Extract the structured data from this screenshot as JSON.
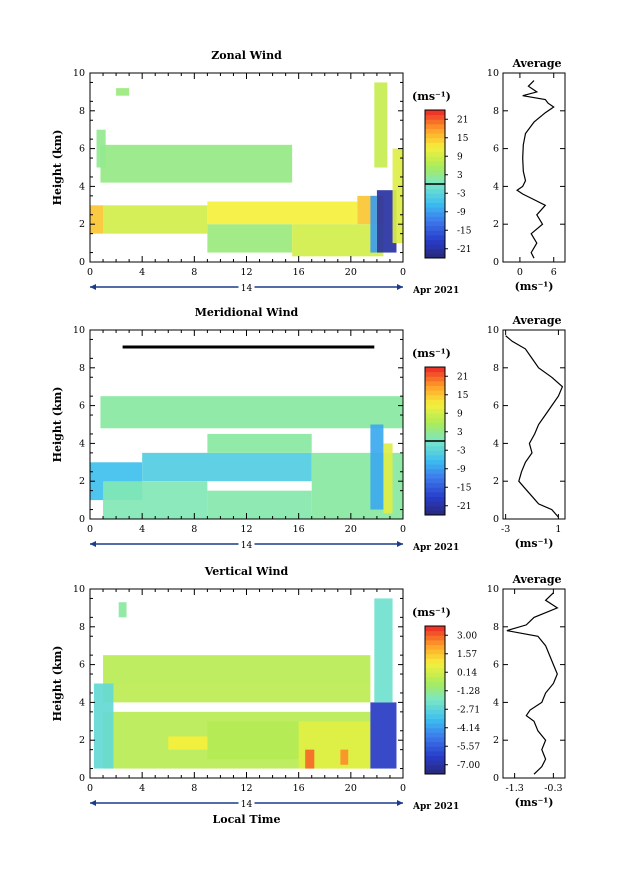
{
  "chart_data": [
    {
      "type": "heatmap",
      "title": "Zonal Wind",
      "ylabel": "Height (km)",
      "ylim": [
        0,
        10
      ],
      "yticks": [
        "0",
        "2",
        "4",
        "6",
        "8",
        "10"
      ],
      "xlim": [
        0,
        24
      ],
      "xticks": [
        "0",
        "4",
        "8",
        "12",
        "16",
        "20",
        "0"
      ],
      "day_label": "14",
      "date_label": "Apr 2021",
      "units": "(ms⁻¹)",
      "colorbar": {
        "min": -24,
        "max": 24,
        "ticks": [
          "21",
          "15",
          "9",
          "3",
          "-3",
          "-9",
          "-15",
          "-21"
        ]
      },
      "regions": [
        {
          "x0": 0.8,
          "x1": 15.5,
          "y0": 4.2,
          "y1": 6.2,
          "v": 3.5
        },
        {
          "x0": 9.0,
          "x1": 15.5,
          "y0": 0.5,
          "y1": 2.0,
          "v": 4
        },
        {
          "x0": 1.0,
          "x1": 9.0,
          "y0": 1.5,
          "y1": 3.0,
          "v": 9
        },
        {
          "x0": 0.0,
          "x1": 1.0,
          "y0": 1.5,
          "y1": 3.0,
          "v": 15
        },
        {
          "x0": 9.0,
          "x1": 20.5,
          "y0": 2.0,
          "y1": 3.2,
          "v": 12
        },
        {
          "x0": 15.5,
          "x1": 22.5,
          "y0": 0.3,
          "y1": 2.0,
          "v": 9
        },
        {
          "x0": 20.5,
          "x1": 22.5,
          "y0": 2.0,
          "y1": 3.5,
          "v": 15
        },
        {
          "x0": 22.0,
          "x1": 23.5,
          "y0": 0.5,
          "y1": 3.8,
          "v": -21
        },
        {
          "x0": 21.5,
          "x1": 22.0,
          "y0": 0.5,
          "y1": 3.5,
          "v": -9
        },
        {
          "x0": 21.8,
          "x1": 22.8,
          "y0": 5.0,
          "y1": 9.5,
          "v": 8
        },
        {
          "x0": 23.2,
          "x1": 24.0,
          "y0": 1.0,
          "y1": 6.0,
          "v": 10
        },
        {
          "x0": 0.5,
          "x1": 1.2,
          "y0": 5.0,
          "y1": 7.0,
          "v": 3
        },
        {
          "x0": 2.0,
          "x1": 3.0,
          "y0": 8.8,
          "y1": 9.2,
          "v": 4
        }
      ],
      "profile": {
        "title": "Average",
        "xlabel": "(ms⁻¹)",
        "xlim": [
          -3,
          8
        ],
        "xticks": [
          0,
          6
        ],
        "heights": [
          0.2,
          0.5,
          1.0,
          1.5,
          2.0,
          2.5,
          3.0,
          3.3,
          3.6,
          3.8,
          4.0,
          4.3,
          4.8,
          5.5,
          6.2,
          6.8,
          7.4,
          7.9,
          8.2,
          8.4,
          8.6,
          8.8,
          9.0,
          9.3,
          9.6
        ],
        "values": [
          2.5,
          2.0,
          3.0,
          2.0,
          4.0,
          3.0,
          4.5,
          2.5,
          0.5,
          -0.5,
          0.5,
          1.0,
          0.6,
          0.5,
          0.6,
          1.0,
          2.5,
          4.5,
          6.0,
          5.0,
          4.5,
          0.5,
          3.0,
          1.5,
          2.5
        ]
      }
    },
    {
      "type": "heatmap",
      "title": "Meridional Wind",
      "ylabel": "Height (km)",
      "ylim": [
        0,
        10
      ],
      "yticks": [
        "0",
        "2",
        "4",
        "6",
        "8",
        "10"
      ],
      "xlim": [
        0,
        24
      ],
      "xticks": [
        "0",
        "4",
        "8",
        "12",
        "16",
        "20",
        "0"
      ],
      "day_label": "14",
      "date_label": "Apr 2021",
      "units": "(ms⁻¹)",
      "colorbar": {
        "min": -24,
        "max": 24,
        "ticks": [
          "21",
          "15",
          "9",
          "3",
          "-3",
          "-9",
          "-15",
          "-21"
        ]
      },
      "regions": [
        {
          "x0": 0.8,
          "x1": 24.0,
          "y0": 4.8,
          "y1": 6.5,
          "v": 2
        },
        {
          "x0": 0.0,
          "x1": 4.0,
          "y0": 1.0,
          "y1": 3.0,
          "v": -6
        },
        {
          "x0": 4.0,
          "x1": 17.0,
          "y0": 2.0,
          "y1": 3.5,
          "v": -4
        },
        {
          "x0": 9.0,
          "x1": 17.0,
          "y0": 3.5,
          "y1": 4.5,
          "v": 2
        },
        {
          "x0": 1.0,
          "x1": 9.0,
          "y0": 0.0,
          "y1": 2.0,
          "v": 1
        },
        {
          "x0": 17.0,
          "x1": 24.0,
          "y0": 0.0,
          "y1": 3.5,
          "v": 2
        },
        {
          "x0": 9.0,
          "x1": 17.0,
          "y0": 0.0,
          "y1": 1.5,
          "v": 1.5
        },
        {
          "x0": 21.5,
          "x1": 22.5,
          "y0": 0.5,
          "y1": 5.0,
          "v": -8
        },
        {
          "x0": 22.5,
          "x1": 23.2,
          "y0": 0.3,
          "y1": 4.0,
          "v": 10
        }
      ],
      "line": {
        "x0": 2.5,
        "x1": 21.8,
        "y": 9.1
      },
      "profile": {
        "title": "Average",
        "xlabel": "(ms⁻¹)",
        "xlim": [
          -3.2,
          1.5
        ],
        "xticks": [
          -3,
          1
        ],
        "tick_labels": [
          "-3",
          "1"
        ],
        "heights": [
          0.1,
          0.5,
          0.8,
          1.2,
          1.6,
          2.0,
          2.5,
          3.0,
          3.5,
          4.0,
          4.5,
          5.0,
          5.5,
          6.0,
          6.5,
          7.0,
          7.5,
          8.0,
          8.5,
          9.0,
          9.4,
          9.7
        ],
        "values": [
          1.0,
          0.5,
          -0.5,
          -1.0,
          -1.5,
          -2.0,
          -1.8,
          -1.5,
          -1.0,
          -1.2,
          -0.8,
          -0.5,
          0.0,
          0.5,
          1.0,
          1.3,
          0.5,
          -0.5,
          -1.0,
          -1.5,
          -2.5,
          -3.0
        ]
      }
    },
    {
      "type": "heatmap",
      "title": "Vertical Wind",
      "ylabel": "Height (km)",
      "xlabel": "Local Time",
      "ylim": [
        0,
        10
      ],
      "yticks": [
        "0",
        "2",
        "4",
        "6",
        "8",
        "10"
      ],
      "xlim": [
        0,
        24
      ],
      "xticks": [
        "0",
        "4",
        "8",
        "12",
        "16",
        "20",
        "0"
      ],
      "day_label": "14",
      "date_label": "Apr 2021",
      "units": "(ms⁻¹)",
      "colorbar": {
        "min": -7.8,
        "max": 3.8,
        "ticks": [
          "3.00",
          "1.57",
          "0.14",
          "-1.28",
          "-2.71",
          "-4.14",
          "-5.57",
          "-7.00"
        ]
      },
      "regions": [
        {
          "x0": 1.0,
          "x1": 21.5,
          "y0": 5.0,
          "y1": 6.5,
          "v": -0.3
        },
        {
          "x0": 1.0,
          "x1": 21.5,
          "y0": 4.0,
          "y1": 5.0,
          "v": -0.2
        },
        {
          "x0": 1.0,
          "x1": 21.5,
          "y0": 0.5,
          "y1": 3.5,
          "v": -0.3
        },
        {
          "x0": 9.0,
          "x1": 16.0,
          "y0": 1.0,
          "y1": 3.0,
          "v": -0.4
        },
        {
          "x0": 6.0,
          "x1": 9.0,
          "y0": 1.5,
          "y1": 2.2,
          "v": 0.9
        },
        {
          "x0": 16.0,
          "x1": 21.5,
          "y0": 0.5,
          "y1": 3.0,
          "v": 0.5
        },
        {
          "x0": 16.5,
          "x1": 17.2,
          "y0": 0.5,
          "y1": 1.5,
          "v": 3.0
        },
        {
          "x0": 19.2,
          "x1": 19.8,
          "y0": 0.7,
          "y1": 1.5,
          "v": 2.5
        },
        {
          "x0": 0.3,
          "x1": 1.8,
          "y0": 0.5,
          "y1": 5.0,
          "v": -2.5
        },
        {
          "x0": 21.5,
          "x1": 23.5,
          "y0": 0.5,
          "y1": 4.0,
          "v": -6.5
        },
        {
          "x0": 21.8,
          "x1": 23.2,
          "y0": 4.0,
          "y1": 9.5,
          "v": -2.2
        },
        {
          "x0": 2.2,
          "x1": 2.8,
          "y0": 8.5,
          "y1": 9.3,
          "v": -1.5
        }
      ],
      "profile": {
        "title": "Average",
        "xlabel": "(ms⁻¹)",
        "xlim": [
          -1.6,
          0.0
        ],
        "xticks": [
          -1.3,
          -0.3
        ],
        "tick_labels": [
          "-1.3",
          "-0.3"
        ],
        "heights": [
          0.2,
          0.6,
          1.0,
          1.5,
          2.0,
          2.5,
          3.0,
          3.3,
          3.6,
          4.0,
          4.5,
          5.0,
          5.5,
          6.0,
          6.5,
          7.0,
          7.5,
          7.8,
          8.1,
          8.5,
          9.0,
          9.4,
          9.8
        ],
        "values": [
          -0.8,
          -0.6,
          -0.5,
          -0.6,
          -0.5,
          -0.7,
          -0.8,
          -1.0,
          -0.9,
          -0.6,
          -0.5,
          -0.3,
          -0.2,
          -0.3,
          -0.4,
          -0.5,
          -0.7,
          -1.5,
          -1.0,
          -0.8,
          -0.2,
          -0.5,
          -0.3
        ]
      }
    }
  ]
}
